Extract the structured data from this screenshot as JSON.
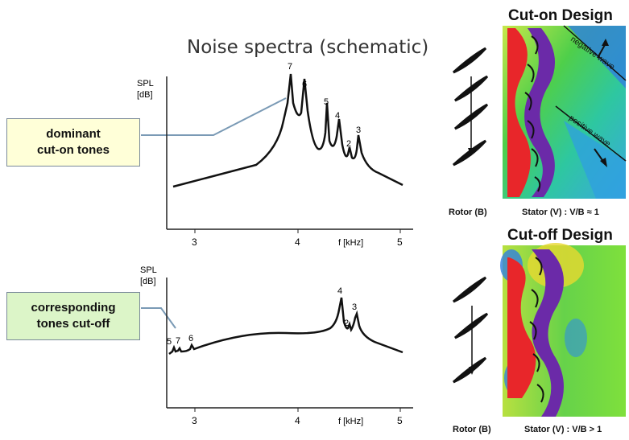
{
  "title": "Noise spectra (schematic)",
  "callouts": {
    "top": [
      "dominant",
      "cut-on tones"
    ],
    "bottom": [
      "corresponding",
      "tones cut-off"
    ]
  },
  "top_plot": {
    "ylabel": [
      "SPL",
      "[dB]"
    ],
    "xlabel": "f [kHz]",
    "ticks": [
      "3",
      "4",
      "5"
    ],
    "peak_labels": [
      "7",
      "6",
      "5",
      "4",
      "2",
      "3"
    ]
  },
  "bottom_plot": {
    "ylabel": [
      "SPL",
      "[dB]"
    ],
    "xlabel": "f [kHz]",
    "ticks": [
      "3",
      "4",
      "5"
    ],
    "peak_labels": [
      "5",
      "7",
      "6",
      "4",
      "2",
      "3"
    ]
  },
  "cut_on": {
    "title": "Cut-on Design",
    "wave_labels": [
      "negative wave",
      "positive wave"
    ],
    "caption_rotor": "Rotor (B)",
    "caption_stator": "Stator (V) :  V/B ≈ 1"
  },
  "cut_off": {
    "title": "Cut-off Design",
    "caption_rotor": "Rotor (B)",
    "caption_stator": "Stator (V) :  V/B > 1"
  }
}
